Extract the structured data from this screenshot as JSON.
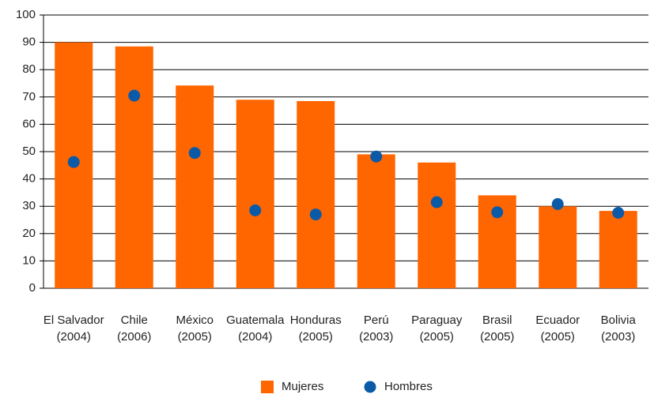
{
  "chart_data": {
    "type": "bar",
    "categories": [
      [
        "El Salvador",
        "(2004)"
      ],
      [
        "Chile",
        "(2006)"
      ],
      [
        "México",
        "(2005)"
      ],
      [
        "Guatemala",
        "(2004)"
      ],
      [
        "Honduras",
        "(2005)"
      ],
      [
        "Perú",
        "(2003)"
      ],
      [
        "Paraguay",
        "(2005)"
      ],
      [
        "Brasil",
        "(2005)"
      ],
      [
        "Ecuador",
        "(2005)"
      ],
      [
        "Bolivia",
        "(2003)"
      ]
    ],
    "series": [
      {
        "name": "Mujeres",
        "color": "#ff6600",
        "style": "bar",
        "values": [
          90,
          88.5,
          74.2,
          69,
          68.5,
          49,
          46,
          34,
          30,
          28.3
        ]
      },
      {
        "name": "Hombres",
        "color": "#0a5aa8",
        "style": "dot",
        "values": [
          46.2,
          70.5,
          49.5,
          28.5,
          27,
          48.2,
          31.5,
          27.8,
          30.8,
          27.6
        ]
      }
    ],
    "ylim": [
      0,
      100
    ],
    "yticks": [
      0,
      10,
      20,
      30,
      40,
      50,
      60,
      70,
      80,
      90,
      100
    ],
    "grid": true
  }
}
